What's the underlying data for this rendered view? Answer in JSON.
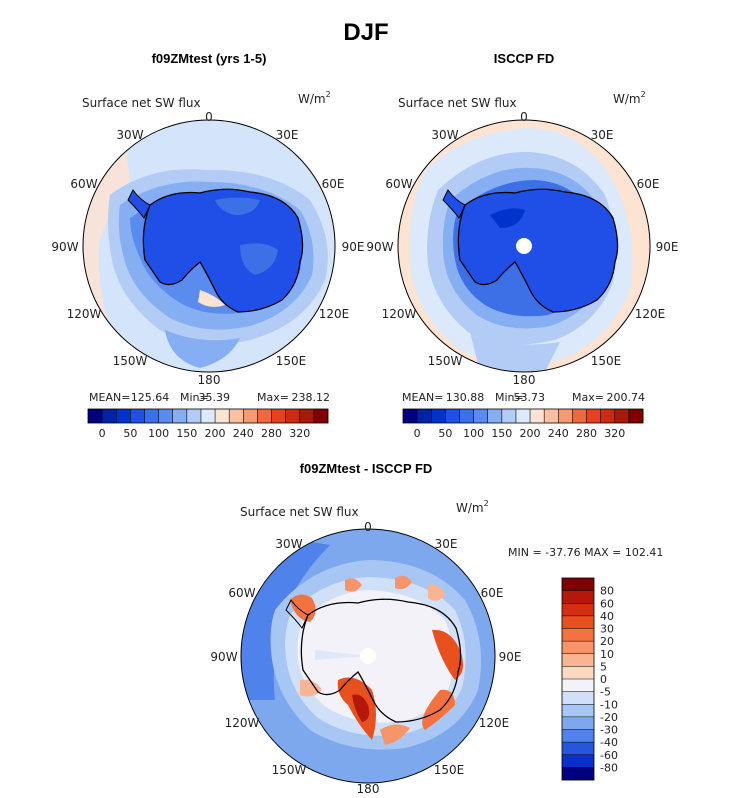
{
  "title": "DJF",
  "colors": {
    "ink": "#000000",
    "land_outline": "#000000",
    "pole_hole": "#ffffff"
  },
  "chart_data": [
    {
      "type": "polar-map",
      "subtitle": "f09ZMtest (yrs 1-5)",
      "variable": "Surface net SW flux",
      "units": "W/m",
      "units_exp": "2",
      "lon_labels": [
        "0",
        "30E",
        "60E",
        "90E",
        "120E",
        "150E",
        "180",
        "150W",
        "120W",
        "90W",
        "60W",
        "30W"
      ],
      "stats": {
        "mean_label": "MEAN=",
        "mean": "125.64",
        "min_label": "Min=",
        "min": "35.39",
        "max_label": "Max=",
        "max": "238.12"
      },
      "colorbar": {
        "ticks": [
          "0",
          "50",
          "100",
          "150",
          "200",
          "240",
          "280",
          "320"
        ],
        "colors": [
          "#00007f",
          "#0022a6",
          "#0033cc",
          "#1f4fe6",
          "#3d6fe6",
          "#5a8bee",
          "#86aef2",
          "#b3ccf6",
          "#dce9fb",
          "#fde3d2",
          "#f9c0a1",
          "#f59a73",
          "#f0683e",
          "#e6411e",
          "#cc2a12",
          "#a81a0a",
          "#800000"
        ]
      }
    },
    {
      "type": "polar-map",
      "subtitle": "ISCCP FD",
      "variable": "Surface net SW flux",
      "units": "W/m",
      "units_exp": "2",
      "lon_labels": [
        "0",
        "30E",
        "60E",
        "90E",
        "120E",
        "150E",
        "180",
        "150W",
        "120W",
        "90W",
        "60W",
        "30W"
      ],
      "stats": {
        "mean_label": "MEAN=",
        "mean": "130.88",
        "min_label": "Min=",
        "min": "53.73",
        "max_label": "Max=",
        "max": "200.74"
      },
      "colorbar": {
        "ticks": [
          "0",
          "50",
          "100",
          "150",
          "200",
          "240",
          "280",
          "320"
        ],
        "colors": [
          "#00007f",
          "#0022a6",
          "#0033cc",
          "#1f4fe6",
          "#3d6fe6",
          "#5a8bee",
          "#86aef2",
          "#b3ccf6",
          "#dce9fb",
          "#fde3d2",
          "#f9c0a1",
          "#f59a73",
          "#f0683e",
          "#e6411e",
          "#cc2a12",
          "#a81a0a",
          "#800000"
        ]
      }
    },
    {
      "type": "polar-map-difference",
      "subtitle": "f09ZMtest - ISCCP FD",
      "variable": "Surface net SW flux",
      "units": "W/m",
      "units_exp": "2",
      "lon_labels": [
        "0",
        "30E",
        "60E",
        "90E",
        "120E",
        "150E",
        "180",
        "150W",
        "120W",
        "90W",
        "60W",
        "30W"
      ],
      "minmax_text": "MIN = -37.76 MAX = 102.41",
      "min": -37.76,
      "max": 102.41,
      "colorbar": {
        "ticks": [
          "80",
          "60",
          "40",
          "30",
          "20",
          "10",
          "5",
          "0",
          "-5",
          "-10",
          "-20",
          "-30",
          "-40",
          "-60",
          "-80"
        ],
        "colors": [
          "#800000",
          "#b5180a",
          "#d42d12",
          "#e8511e",
          "#f27240",
          "#f7946a",
          "#f9b593",
          "#fdd9c4",
          "#f2f2f8",
          "#cfe0f8",
          "#a8c6f3",
          "#7ea8ee",
          "#4f82ea",
          "#2456e0",
          "#0a2fcc",
          "#00007f"
        ]
      }
    }
  ]
}
